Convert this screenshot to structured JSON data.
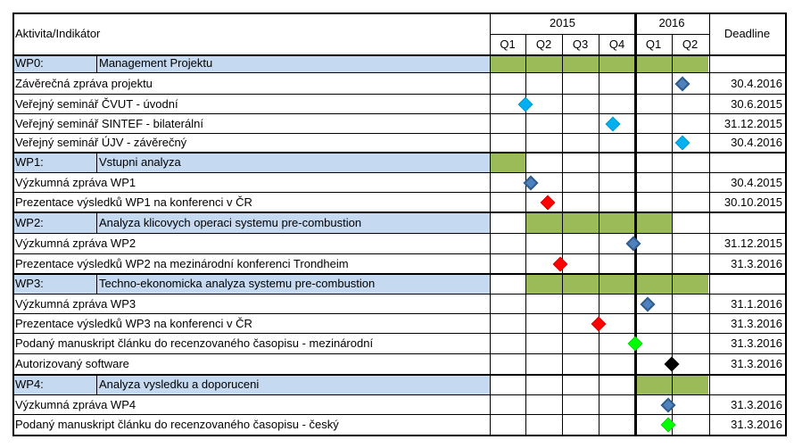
{
  "header": {
    "activity_label": "Aktivita/Indikátor",
    "year_2015": "2015",
    "year_2016": "2016",
    "quarters": [
      "Q1",
      "Q2",
      "Q3",
      "Q4",
      "Q1",
      "Q2"
    ],
    "deadline_label": "Deadline"
  },
  "colors": {
    "wp_row_bg": "#c5d9f1",
    "bar": "#9bbb59",
    "diamond_blue": "#4f81bd",
    "diamond_cyan": "#00b0f0",
    "diamond_red": "#ff0000",
    "diamond_green": "#00ff00",
    "diamond_black": "#000000"
  },
  "rows": [
    {
      "type": "wp",
      "code": "WP0:",
      "name": "Management Projektu",
      "bar": [
        0,
        6
      ]
    },
    {
      "type": "task",
      "name": "Závěrečná zpráva projektu",
      "deadline": "30.4.2016",
      "marker": {
        "q": 5.3,
        "color": "blue"
      }
    },
    {
      "type": "task",
      "name": "Veřejný seminář ČVUT - úvodní",
      "deadline": "30.6.2015",
      "marker": {
        "q": 1.0,
        "color": "cyan"
      }
    },
    {
      "type": "task",
      "name": "Veřejný seminář SINTEF - bilaterální",
      "deadline": "31.12.2015",
      "marker": {
        "q": 3.4,
        "color": "cyan"
      }
    },
    {
      "type": "task",
      "name": "Veřejný seminář ÚJV - závěrečný",
      "deadline": "30.4.2016",
      "marker": {
        "q": 5.3,
        "color": "cyan"
      }
    },
    {
      "type": "wp",
      "code": "WP1:",
      "name": "Vstupni analyza",
      "bar": [
        0,
        1
      ]
    },
    {
      "type": "task",
      "name": "Výzkumná zpráva WP1",
      "deadline": "30.4.2015",
      "marker": {
        "q": 1.15,
        "color": "blue"
      }
    },
    {
      "type": "task",
      "name": "Prezentace výsledků WP1 na konferenci v ČR",
      "deadline": "30.10.2015",
      "marker": {
        "q": 1.6,
        "color": "red"
      }
    },
    {
      "type": "wp",
      "code": "WP2:",
      "name": "Analyza klicovych operaci systemu pre-combustion",
      "bar": [
        1,
        5
      ]
    },
    {
      "type": "task",
      "name": "Výzkumná zpráva WP2",
      "deadline": "31.12.2015",
      "marker": {
        "q": 3.95,
        "color": "blue"
      }
    },
    {
      "type": "task",
      "name": "Prezentace výsledků WP2 na mezinárodní konferenci Trondheim",
      "deadline": "31.3.2016",
      "marker": {
        "q": 1.95,
        "color": "red"
      }
    },
    {
      "type": "wp",
      "code": "WP3:",
      "name": "Techno-ekonomicka analyza systemu pre-combustion",
      "bar": [
        1,
        6
      ]
    },
    {
      "type": "task",
      "name": "Výzkumná zpráva WP3",
      "deadline": "31.1.2016",
      "marker": {
        "q": 4.35,
        "color": "blue"
      }
    },
    {
      "type": "task",
      "name": "Prezentace výsledků WP3 na konferenci v ČR",
      "deadline": "31.3.2016",
      "marker": {
        "q": 3.0,
        "color": "red"
      }
    },
    {
      "type": "task",
      "name": "Podaný manuskript článku do recenzovaného časopisu - mezinárodní",
      "deadline": "31.3.2016",
      "marker": {
        "q": 4.0,
        "color": "green"
      }
    },
    {
      "type": "task",
      "name": "Autorizovaný software",
      "deadline": "31.3.2016",
      "marker": {
        "q": 5.0,
        "color": "black"
      }
    },
    {
      "type": "wp",
      "code": "WP4:",
      "name": "Analyza vysledku a doporuceni",
      "bar": [
        4,
        6
      ]
    },
    {
      "type": "task",
      "name": "Výzkumná zpráva WP4",
      "deadline": "31.3.2016",
      "marker": {
        "q": 4.9,
        "color": "blue"
      }
    },
    {
      "type": "task",
      "name": "Podaný manuskript článku do recenzovaného časopisu - český",
      "deadline": "31.3.2016",
      "marker": {
        "q": 4.9,
        "color": "green"
      }
    }
  ]
}
